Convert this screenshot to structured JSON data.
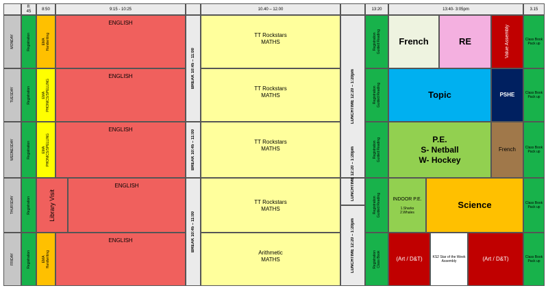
{
  "header": {
    "t1": "8:\n45",
    "t2": "8:50",
    "t3": "9:15 - 10:25",
    "t4": "10.40 – 12.00",
    "t5": "13:20",
    "t6": "13:40- 3:05pm",
    "t7": "3.15"
  },
  "days": [
    "MONDAY",
    "TUESDAY",
    "WEDNESDAY",
    "THURSDAY",
    "FRIDAY"
  ],
  "common": {
    "registration": "Registration",
    "pm_reg": "Registration\nGuided Reading",
    "pm_reg_fri": "Registration\nClass Book",
    "end": "Class Book\nPack up",
    "break": "BREAK 10:45 – 11:00",
    "lunch": "LUNCHTIME 12:20 – 1:20pm"
  },
  "morning": {
    "mon_ema": "EMA\nHandwriting",
    "tue_ema": "EMA\nPHONICS/SPELLING",
    "wed_ema": "EMA\nPHONICS/SPELLING",
    "thu_library": "Library Visit",
    "fri_ema": "EMA\nHandwriting",
    "english": "ENGLISH"
  },
  "midmorning": {
    "mon": "TT Rockstars\nMATHS",
    "tue": "TT Rockstars\nMATHS",
    "wed": "TT Rockstars\nMATHS",
    "thu": "TT Rockstars\nMATHS",
    "fri": "Arithmetic\nMATHS"
  },
  "afternoon": {
    "mon_french": "French",
    "mon_re": "RE",
    "mon_value": "Value Assembly",
    "tue_topic": "Topic",
    "tue_pshe": "PSHE",
    "wed_pe": "P.E.\nS- Netball\nW- Hockey",
    "wed_french": "French",
    "thu_indoor": "INDOOR P.E.",
    "thu_indoor_sub": "1.Sharks\n2.Whales",
    "thu_science": "Science",
    "fri_art1": "(Art / D&T)",
    "fri_ks2": "KS2 Star of the Week Assembly",
    "fri_art2": "(Art / D&T)"
  },
  "colors": {
    "green": "#18b24b",
    "english_red": "#f0605d",
    "maths_yellow": "#ffff9c",
    "ema_amber": "#ffc000",
    "ema_yellow": "#ffff00",
    "dark_red": "#c00000",
    "topic_blue": "#00b0f0",
    "pshe_navy": "#002060",
    "pe_green": "#92d050",
    "french_brown": "#a0784a",
    "re_pink": "#f4b0e0"
  }
}
